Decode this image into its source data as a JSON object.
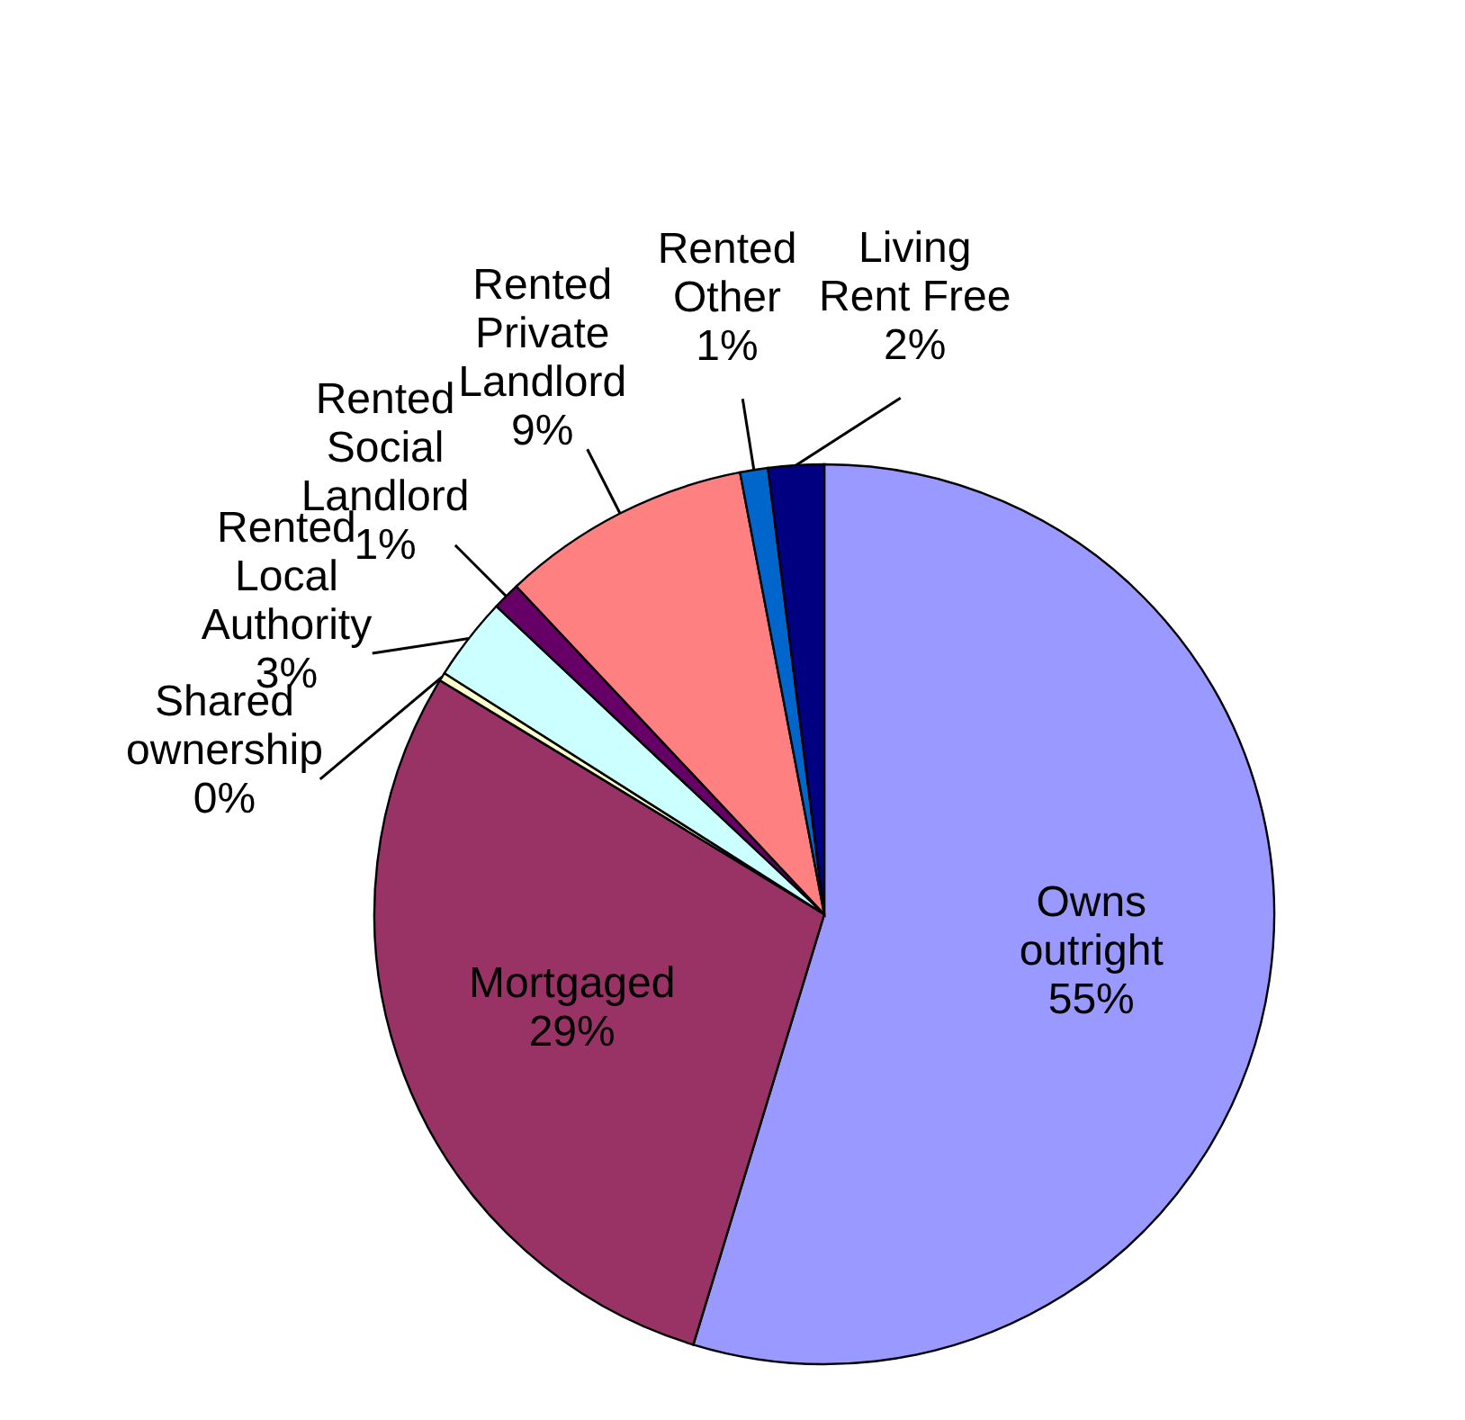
{
  "chart_data": {
    "type": "pie",
    "categories": [
      "Owns outright",
      "Mortgaged",
      "Shared ownership",
      "Rented Local Authority",
      "Rented Social Landlord",
      "Rented Private Landlord",
      "Rented Other",
      "Living Rent Free"
    ],
    "values": [
      54.7,
      29,
      0.3,
      3,
      1,
      9,
      1,
      2
    ],
    "value_labels": [
      "55%",
      "29%",
      "0%",
      "3%",
      "1%",
      "9%",
      "1%",
      "2%"
    ],
    "colors": [
      "#9999ff",
      "#993366",
      "#ffffcc",
      "#ccffff",
      "#660066",
      "#ff8080",
      "#0066cc",
      "#000080"
    ]
  }
}
